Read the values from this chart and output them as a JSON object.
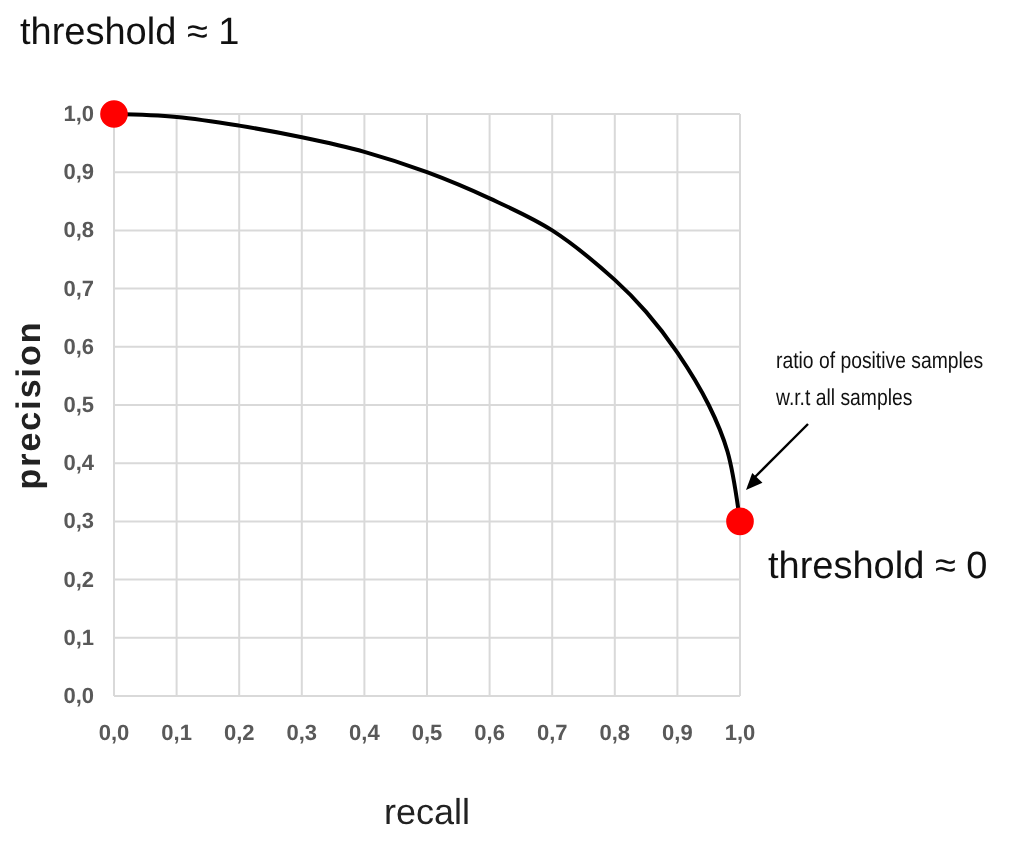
{
  "chart_data": {
    "type": "line",
    "xlabel": "recall",
    "ylabel": "precision",
    "xlim": [
      0,
      1
    ],
    "ylim": [
      0,
      1
    ],
    "xticks": [
      {
        "value": 0,
        "label": "0,0"
      },
      {
        "value": 0.1,
        "label": "0,1"
      },
      {
        "value": 0.2,
        "label": "0,2"
      },
      {
        "value": 0.3,
        "label": "0,3"
      },
      {
        "value": 0.4,
        "label": "0,4"
      },
      {
        "value": 0.5,
        "label": "0,5"
      },
      {
        "value": 0.6,
        "label": "0,6"
      },
      {
        "value": 0.7,
        "label": "0,7"
      },
      {
        "value": 0.8,
        "label": "0,8"
      },
      {
        "value": 0.9,
        "label": "0,9"
      },
      {
        "value": 1,
        "label": "1,0"
      }
    ],
    "yticks": [
      {
        "value": 0,
        "label": "0,0"
      },
      {
        "value": 0.1,
        "label": "0,1"
      },
      {
        "value": 0.2,
        "label": "0,2"
      },
      {
        "value": 0.3,
        "label": "0,3"
      },
      {
        "value": 0.4,
        "label": "0,4"
      },
      {
        "value": 0.5,
        "label": "0,5"
      },
      {
        "value": 0.6,
        "label": "0,6"
      },
      {
        "value": 0.7,
        "label": "0,7"
      },
      {
        "value": 0.8,
        "label": "0,8"
      },
      {
        "value": 0.9,
        "label": "0,9"
      },
      {
        "value": 1,
        "label": "1,0"
      }
    ],
    "grid": true,
    "series": [
      {
        "color": "#000000",
        "marker": "none",
        "x": [
          0,
          0.1,
          0.2,
          0.3,
          0.4,
          0.5,
          0.6,
          0.7,
          0.8,
          0.85,
          0.9,
          0.95,
          0.98,
          1
        ],
        "values": [
          1,
          0.995,
          0.98,
          0.96,
          0.935,
          0.9,
          0.855,
          0.8,
          0.715,
          0.66,
          0.59,
          0.5,
          0.42,
          0.3
        ]
      },
      {
        "type": "scatter",
        "color": "#ff0000",
        "marker": "circle",
        "x": [
          0,
          1
        ],
        "values": [
          1,
          0.3
        ]
      }
    ],
    "annotations": [
      "threshold ≈ 1",
      "threshold ≈ 0",
      "ratio of positive samples\nw.r.t all samples"
    ]
  }
}
